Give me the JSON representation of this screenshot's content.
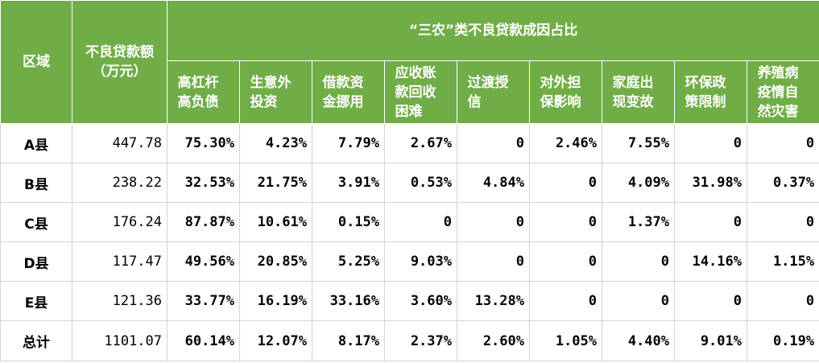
{
  "header": {
    "region": "区域",
    "amount": "不良贷款额（万元）",
    "group": "“三农”类不良贷款成因占比",
    "causes": [
      "高杠杆高负债",
      "生意外投资",
      "借款资金挪用",
      "应收账款回收困难",
      "过渡授信",
      "对外担保影响",
      "家庭出现变故",
      "环保政策限制",
      "养殖病疫情自然灾害"
    ]
  },
  "rows": [
    {
      "region": "A县",
      "amount": "447.78",
      "values": [
        "75.30%",
        "4.23%",
        "7.79%",
        "2.67%",
        "0",
        "2.46%",
        "7.55%",
        "0",
        "0"
      ]
    },
    {
      "region": "B县",
      "amount": "238.22",
      "values": [
        "32.53%",
        "21.75%",
        "3.91%",
        "0.53%",
        "4.84%",
        "0",
        "4.09%",
        "31.98%",
        "0.37%"
      ]
    },
    {
      "region": "C县",
      "amount": "176.24",
      "values": [
        "87.87%",
        "10.61%",
        "0.15%",
        "0",
        "0",
        "0",
        "1.37%",
        "0",
        "0"
      ]
    },
    {
      "region": "D县",
      "amount": "117.47",
      "values": [
        "49.56%",
        "20.85%",
        "5.25%",
        "9.03%",
        "0",
        "0",
        "0",
        "14.16%",
        "1.15%"
      ]
    },
    {
      "region": "E县",
      "amount": "121.36",
      "values": [
        "33.77%",
        "16.19%",
        "33.16%",
        "3.60%",
        "13.28%",
        "0",
        "0",
        "0",
        "0"
      ]
    },
    {
      "region": "总计",
      "amount": "1101.07",
      "values": [
        "60.14%",
        "12.07%",
        "8.17%",
        "2.37%",
        "2.60%",
        "1.05%",
        "4.40%",
        "9.01%",
        "0.19%"
      ]
    }
  ],
  "colors": {
    "header_bg": "#70ad47",
    "header_text": "#ffffff",
    "grid_line": "#d4d4d4"
  }
}
